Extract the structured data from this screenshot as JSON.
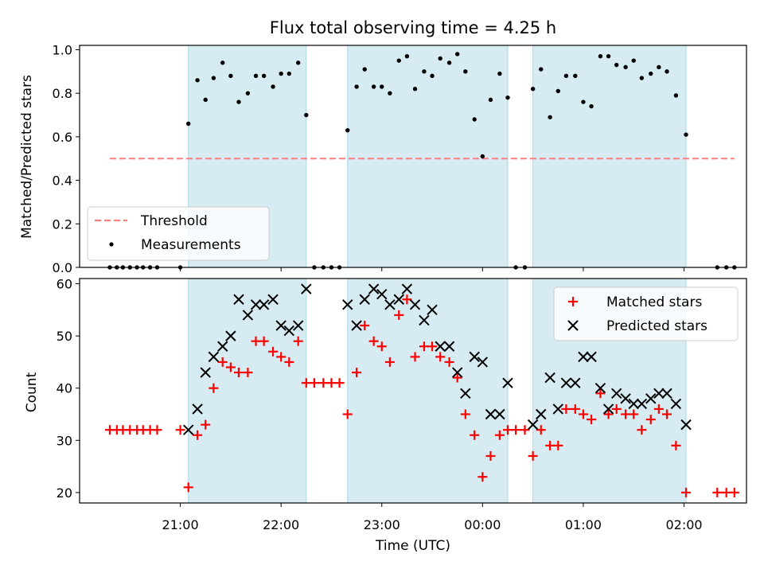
{
  "chart_data": [
    {
      "id": "top",
      "type": "scatter",
      "title": "Flux total observing time = 4.25 h",
      "xlabel": "",
      "ylabel": "Matched/Predicted stars",
      "ylim": [
        0,
        1.02
      ],
      "yticks": [
        "0.0",
        "0.2",
        "0.4",
        "0.6",
        "0.8",
        "1.0"
      ],
      "ytick_values": [
        0,
        0.2,
        0.4,
        0.6,
        0.8,
        1.0
      ],
      "x_unit": "hours (UTC, 24 = 00:00 next day)",
      "xlim": [
        20.0,
        26.62
      ],
      "shaded_intervals": [
        [
          21.08,
          22.25
        ],
        [
          22.66,
          24.25
        ],
        [
          24.5,
          26.02
        ]
      ],
      "shade_color": "#add8e6",
      "threshold": {
        "name": "Threshold",
        "value": 0.5,
        "x_range": [
          20.3,
          26.5
        ],
        "color": "#ff7f7f"
      },
      "legend": {
        "placement": "lower-left",
        "entries": [
          "Threshold",
          "Measurements"
        ]
      },
      "series": [
        {
          "name": "Measurements",
          "color": "#000000",
          "points": [
            [
              20.3,
              0
            ],
            [
              20.37,
              0
            ],
            [
              20.43,
              0
            ],
            [
              20.5,
              0
            ],
            [
              20.57,
              0
            ],
            [
              20.63,
              0
            ],
            [
              20.7,
              0
            ],
            [
              20.77,
              0
            ],
            [
              21.0,
              0
            ],
            [
              21.08,
              0.66
            ],
            [
              21.17,
              0.86
            ],
            [
              21.25,
              0.77
            ],
            [
              21.33,
              0.87
            ],
            [
              21.42,
              0.94
            ],
            [
              21.5,
              0.88
            ],
            [
              21.58,
              0.76
            ],
            [
              21.67,
              0.8
            ],
            [
              21.75,
              0.88
            ],
            [
              21.83,
              0.88
            ],
            [
              21.92,
              0.83
            ],
            [
              22.0,
              0.89
            ],
            [
              22.08,
              0.89
            ],
            [
              22.17,
              0.94
            ],
            [
              22.25,
              0.7
            ],
            [
              22.33,
              0
            ],
            [
              22.42,
              0
            ],
            [
              22.5,
              0
            ],
            [
              22.58,
              0
            ],
            [
              22.66,
              0.63
            ],
            [
              22.75,
              0.83
            ],
            [
              22.83,
              0.91
            ],
            [
              22.92,
              0.83
            ],
            [
              23.0,
              0.83
            ],
            [
              23.08,
              0.8
            ],
            [
              23.17,
              0.95
            ],
            [
              23.25,
              0.97
            ],
            [
              23.33,
              0.82
            ],
            [
              23.42,
              0.9
            ],
            [
              23.5,
              0.88
            ],
            [
              23.58,
              0.96
            ],
            [
              23.67,
              0.94
            ],
            [
              23.75,
              0.98
            ],
            [
              23.83,
              0.9
            ],
            [
              23.92,
              0.68
            ],
            [
              24.0,
              0.51
            ],
            [
              24.08,
              0.77
            ],
            [
              24.17,
              0.89
            ],
            [
              24.25,
              0.78
            ],
            [
              24.33,
              0
            ],
            [
              24.42,
              0
            ],
            [
              24.5,
              0.82
            ],
            [
              24.58,
              0.91
            ],
            [
              24.67,
              0.69
            ],
            [
              24.75,
              0.81
            ],
            [
              24.83,
              0.88
            ],
            [
              24.92,
              0.88
            ],
            [
              25.0,
              0.76
            ],
            [
              25.08,
              0.74
            ],
            [
              25.17,
              0.97
            ],
            [
              25.25,
              0.97
            ],
            [
              25.33,
              0.93
            ],
            [
              25.42,
              0.92
            ],
            [
              25.5,
              0.95
            ],
            [
              25.58,
              0.87
            ],
            [
              25.67,
              0.89
            ],
            [
              25.75,
              0.92
            ],
            [
              25.83,
              0.9
            ],
            [
              25.92,
              0.79
            ],
            [
              26.02,
              0.61
            ],
            [
              26.33,
              0
            ],
            [
              26.42,
              0
            ],
            [
              26.5,
              0
            ]
          ]
        }
      ]
    },
    {
      "id": "bottom",
      "type": "scatter",
      "title": "",
      "xlabel": "Time (UTC)",
      "ylabel": "Count",
      "ylim": [
        18,
        61
      ],
      "yticks": [
        "20",
        "30",
        "40",
        "50",
        "60"
      ],
      "ytick_values": [
        20,
        30,
        40,
        50,
        60
      ],
      "xticks": [
        "21:00",
        "22:00",
        "23:00",
        "00:00",
        "01:00",
        "02:00"
      ],
      "xtick_values": [
        21,
        22,
        23,
        24,
        25,
        26
      ],
      "xlim": [
        20.0,
        26.62
      ],
      "shaded_intervals": [
        [
          21.08,
          22.25
        ],
        [
          22.66,
          24.25
        ],
        [
          24.5,
          26.02
        ]
      ],
      "legend": {
        "placement": "top-right",
        "entries": [
          "Matched stars",
          "Predicted stars"
        ]
      },
      "series": [
        {
          "name": "Matched stars",
          "marker": "plus",
          "color": "#ff0000",
          "points": [
            [
              20.3,
              32
            ],
            [
              20.37,
              32
            ],
            [
              20.43,
              32
            ],
            [
              20.5,
              32
            ],
            [
              20.57,
              32
            ],
            [
              20.63,
              32
            ],
            [
              20.7,
              32
            ],
            [
              20.77,
              32
            ],
            [
              21.0,
              32
            ],
            [
              21.08,
              21
            ],
            [
              21.17,
              31
            ],
            [
              21.25,
              33
            ],
            [
              21.33,
              40
            ],
            [
              21.42,
              45
            ],
            [
              21.5,
              44
            ],
            [
              21.58,
              43
            ],
            [
              21.67,
              43
            ],
            [
              21.75,
              49
            ],
            [
              21.83,
              49
            ],
            [
              21.92,
              47
            ],
            [
              22.0,
              46
            ],
            [
              22.08,
              45
            ],
            [
              22.17,
              49
            ],
            [
              22.25,
              41
            ],
            [
              22.33,
              41
            ],
            [
              22.42,
              41
            ],
            [
              22.5,
              41
            ],
            [
              22.58,
              41
            ],
            [
              22.66,
              35
            ],
            [
              22.75,
              43
            ],
            [
              22.83,
              52
            ],
            [
              22.92,
              49
            ],
            [
              23.0,
              48
            ],
            [
              23.08,
              45
            ],
            [
              23.17,
              54
            ],
            [
              23.25,
              57
            ],
            [
              23.33,
              46
            ],
            [
              23.42,
              48
            ],
            [
              23.5,
              48
            ],
            [
              23.58,
              46
            ],
            [
              23.67,
              45
            ],
            [
              23.75,
              42
            ],
            [
              23.83,
              35
            ],
            [
              23.92,
              31
            ],
            [
              24.0,
              23
            ],
            [
              24.08,
              27
            ],
            [
              24.17,
              31
            ],
            [
              24.25,
              32
            ],
            [
              24.33,
              32
            ],
            [
              24.42,
              32
            ],
            [
              24.5,
              27
            ],
            [
              24.58,
              32
            ],
            [
              24.67,
              29
            ],
            [
              24.75,
              29
            ],
            [
              24.83,
              36
            ],
            [
              24.92,
              36
            ],
            [
              25.0,
              35
            ],
            [
              25.08,
              34
            ],
            [
              25.17,
              39
            ],
            [
              25.25,
              35
            ],
            [
              25.33,
              36
            ],
            [
              25.42,
              35
            ],
            [
              25.5,
              35
            ],
            [
              25.58,
              32
            ],
            [
              25.67,
              34
            ],
            [
              25.75,
              36
            ],
            [
              25.83,
              35
            ],
            [
              25.92,
              29
            ],
            [
              26.02,
              20
            ],
            [
              26.33,
              20
            ],
            [
              26.42,
              20
            ],
            [
              26.5,
              20
            ]
          ]
        },
        {
          "name": "Predicted stars",
          "marker": "x",
          "color": "#000000",
          "points": [
            [
              21.08,
              32
            ],
            [
              21.17,
              36
            ],
            [
              21.25,
              43
            ],
            [
              21.33,
              46
            ],
            [
              21.42,
              48
            ],
            [
              21.5,
              50
            ],
            [
              21.58,
              57
            ],
            [
              21.67,
              54
            ],
            [
              21.75,
              56
            ],
            [
              21.83,
              56
            ],
            [
              21.92,
              57
            ],
            [
              22.0,
              52
            ],
            [
              22.08,
              51
            ],
            [
              22.17,
              52
            ],
            [
              22.25,
              59
            ],
            [
              22.66,
              56
            ],
            [
              22.75,
              52
            ],
            [
              22.83,
              57
            ],
            [
              22.92,
              59
            ],
            [
              23.0,
              58
            ],
            [
              23.08,
              56
            ],
            [
              23.17,
              57
            ],
            [
              23.25,
              59
            ],
            [
              23.33,
              56
            ],
            [
              23.42,
              53
            ],
            [
              23.5,
              55
            ],
            [
              23.58,
              48
            ],
            [
              23.67,
              48
            ],
            [
              23.75,
              43
            ],
            [
              23.83,
              39
            ],
            [
              23.92,
              46
            ],
            [
              24.0,
              45
            ],
            [
              24.08,
              35
            ],
            [
              24.17,
              35
            ],
            [
              24.25,
              41
            ],
            [
              24.5,
              33
            ],
            [
              24.58,
              35
            ],
            [
              24.67,
              42
            ],
            [
              24.75,
              36
            ],
            [
              24.83,
              41
            ],
            [
              24.92,
              41
            ],
            [
              25.0,
              46
            ],
            [
              25.08,
              46
            ],
            [
              25.17,
              40
            ],
            [
              25.25,
              36
            ],
            [
              25.33,
              39
            ],
            [
              25.42,
              38
            ],
            [
              25.5,
              37
            ],
            [
              25.58,
              37
            ],
            [
              25.67,
              38
            ],
            [
              25.75,
              39
            ],
            [
              25.83,
              39
            ],
            [
              25.92,
              37
            ],
            [
              26.02,
              33
            ]
          ]
        }
      ]
    }
  ]
}
